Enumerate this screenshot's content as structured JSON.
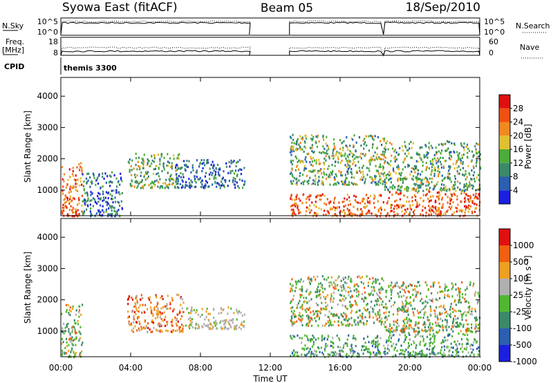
{
  "header": {
    "station": "Syowa East (fitACF)",
    "beam": "Beam 05",
    "date": "18/Sep/2010"
  },
  "aux_panels": {
    "nsky_label": "N.Sky",
    "nsky_ticks": [
      "10^5",
      "10^0"
    ],
    "nsearch_label": "N.Search",
    "nsearch_ticks": [
      "10^5",
      "10^0"
    ],
    "freq_label_1": "Freq.",
    "freq_label_2": "[MHz]",
    "freq_ticks": [
      "18",
      "8"
    ],
    "nave_label": "Nave",
    "nave_ticks": [
      "60",
      "0"
    ],
    "cpid_label": "CPID",
    "cpid_value": "themis 3300"
  },
  "chart_data": [
    {
      "type": "heatmap",
      "panel": "power",
      "ylabel": "Slant Range [km]",
      "xlabel": "",
      "yticks": [
        "1000",
        "2000",
        "3000",
        "4000"
      ],
      "ylim": [
        180,
        4600
      ],
      "xlim_hours": [
        0,
        24
      ],
      "colorbar_label": "Power [dB]",
      "colorbar_ticks": [
        "28",
        "24",
        "20",
        "16",
        "12",
        "8",
        "4"
      ],
      "colors": [
        "#1d1fe0",
        "#2a5fb2",
        "#3a8a6a",
        "#4cad3a",
        "#e0c030",
        "#f08a20",
        "#f05010",
        "#e01010"
      ],
      "data_gaps_hours": [
        [
          10.8,
          13.1
        ]
      ],
      "echo_regions": [
        {
          "t": [
            0.0,
            1.2
          ],
          "r": [
            200,
            1900
          ],
          "level": "high"
        },
        {
          "t": [
            1.2,
            3.5
          ],
          "r": [
            200,
            1600
          ],
          "level": "low"
        },
        {
          "t": [
            3.8,
            6.8
          ],
          "r": [
            1100,
            2200
          ],
          "level": "mid"
        },
        {
          "t": [
            6.5,
            10.5
          ],
          "r": [
            1100,
            2000
          ],
          "level": "low"
        },
        {
          "t": [
            13.1,
            18.5
          ],
          "r": [
            200,
            900
          ],
          "level": "high"
        },
        {
          "t": [
            13.1,
            18.5
          ],
          "r": [
            1200,
            2800
          ],
          "level": "mid"
        },
        {
          "t": [
            18.5,
            24.0
          ],
          "r": [
            200,
            1000
          ],
          "level": "high"
        },
        {
          "t": [
            18.5,
            24.0
          ],
          "r": [
            1000,
            2600
          ],
          "level": "mid"
        }
      ]
    },
    {
      "type": "heatmap",
      "panel": "velocity",
      "ylabel": "Slant Range [km]",
      "xlabel": "Time UT",
      "yticks": [
        "1000",
        "2000",
        "3000",
        "4000"
      ],
      "ylim": [
        180,
        4600
      ],
      "xticks": [
        "00:00",
        "04:00",
        "08:00",
        "12:00",
        "16:00",
        "20:00",
        "00:00"
      ],
      "xlim_hours": [
        0,
        24
      ],
      "colorbar_label": "Velocity [m s⁻¹]",
      "colorbar_ticks": [
        "1000",
        "500",
        "100",
        "25",
        "-25",
        "-100",
        "-500",
        "-1000"
      ],
      "colors": [
        "#1d1fe0",
        "#2a5fb2",
        "#3a8a6a",
        "#50b830",
        "#b0b0b0",
        "#f0a020",
        "#f06010",
        "#e01010"
      ],
      "data_gaps_hours": [
        [
          10.8,
          13.1
        ]
      ],
      "echo_regions": [
        {
          "t": [
            0.0,
            1.2
          ],
          "r": [
            200,
            1900
          ],
          "level": "mixed"
        },
        {
          "t": [
            3.8,
            7.0
          ],
          "r": [
            1000,
            2200
          ],
          "level": "away"
        },
        {
          "t": [
            7.0,
            10.5
          ],
          "r": [
            1100,
            1800
          ],
          "level": "zero"
        },
        {
          "t": [
            13.1,
            18.5
          ],
          "r": [
            200,
            900
          ],
          "level": "toward"
        },
        {
          "t": [
            13.1,
            18.5
          ],
          "r": [
            1200,
            2800
          ],
          "level": "mixed"
        },
        {
          "t": [
            18.5,
            24.0
          ],
          "r": [
            200,
            1000
          ],
          "level": "toward"
        },
        {
          "t": [
            18.5,
            24.0
          ],
          "r": [
            1000,
            2600
          ],
          "level": "mixed"
        }
      ]
    }
  ]
}
